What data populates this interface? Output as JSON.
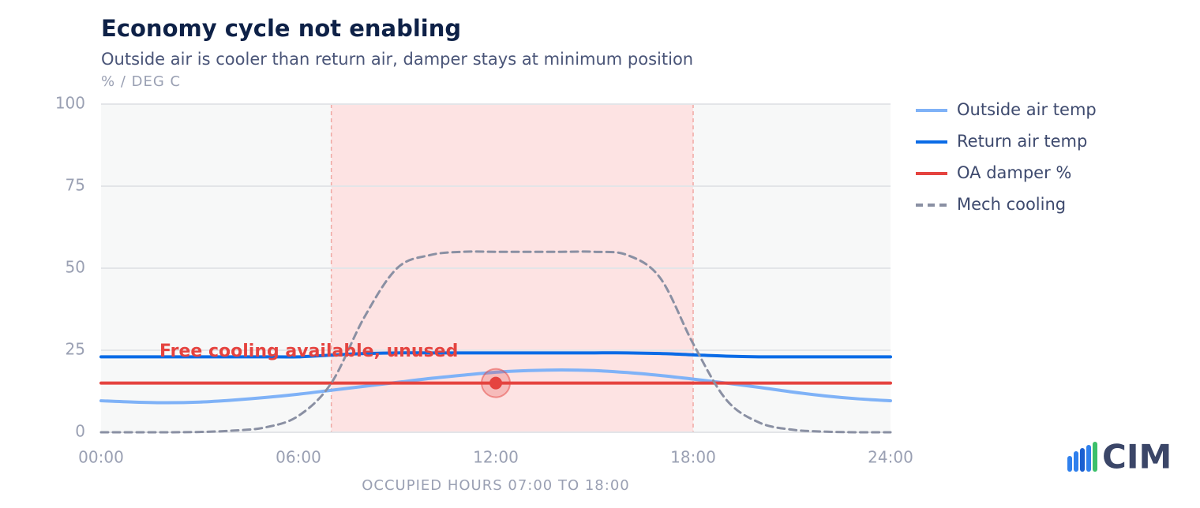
{
  "chart_data": {
    "type": "line",
    "title": "Economy cycle not enabling",
    "subtitle": "Outside air is cooler than return air, damper stays at minimum position",
    "y_unit_label": "% / DEG C",
    "x_label": "OCCUPIED HOURS 07:00 TO 18:00",
    "annotation": "Free cooling available, unused",
    "logo": "CIM",
    "x": [
      0,
      1,
      2,
      3,
      4,
      5,
      6,
      7,
      8,
      9,
      10,
      11,
      12,
      13,
      14,
      15,
      16,
      17,
      18,
      19,
      20,
      21,
      22,
      23,
      24
    ],
    "series": [
      {
        "name": "Outside air temp",
        "color": "#7fb2f7",
        "dashed": false,
        "values": [
          9.6,
          9.2,
          9.0,
          9.2,
          9.8,
          10.6,
          11.6,
          12.8,
          14.0,
          15.2,
          16.4,
          17.4,
          18.3,
          18.8,
          19.0,
          18.8,
          18.2,
          17.3,
          16.2,
          15.0,
          13.7,
          12.3,
          11.1,
          10.2,
          9.6
        ]
      },
      {
        "name": "Return air temp",
        "color": "#0a6be6",
        "dashed": false,
        "values": [
          23.0,
          23.0,
          23.0,
          23.0,
          23.0,
          23.0,
          23.0,
          23.5,
          24.0,
          24.2,
          24.2,
          24.2,
          24.2,
          24.2,
          24.2,
          24.2,
          24.2,
          24.0,
          23.6,
          23.2,
          23.0,
          23.0,
          23.0,
          23.0,
          23.0
        ]
      },
      {
        "name": "OA damper %",
        "color": "#e5433f",
        "dashed": false,
        "values": [
          15,
          15,
          15,
          15,
          15,
          15,
          15,
          15,
          15,
          15,
          15,
          15,
          15,
          15,
          15,
          15,
          15,
          15,
          15,
          15,
          15,
          15,
          15,
          15,
          15
        ]
      },
      {
        "name": "Mech cooling",
        "color": "#8a90a3",
        "dashed": true,
        "values": [
          0,
          0,
          0,
          0.1,
          0.5,
          1.5,
          5,
          15,
          35,
          50,
          54,
          55,
          55,
          55,
          55,
          55,
          54,
          47,
          27,
          10,
          3,
          0.8,
          0.2,
          0,
          0
        ]
      }
    ],
    "highlight_x": [
      7,
      18
    ],
    "marker": {
      "x": 12,
      "y": 15,
      "color": "#e5433f"
    },
    "xlim": [
      0,
      24
    ],
    "xticks": [
      {
        "value": 0,
        "label": "00:00"
      },
      {
        "value": 6,
        "label": "06:00"
      },
      {
        "value": 12,
        "label": "12:00"
      },
      {
        "value": 18,
        "label": "18:00"
      },
      {
        "value": 24,
        "label": "24:00"
      }
    ],
    "ylim": [
      0,
      100
    ],
    "yticks": [
      0,
      25,
      50,
      75,
      100
    ],
    "grid": true
  }
}
